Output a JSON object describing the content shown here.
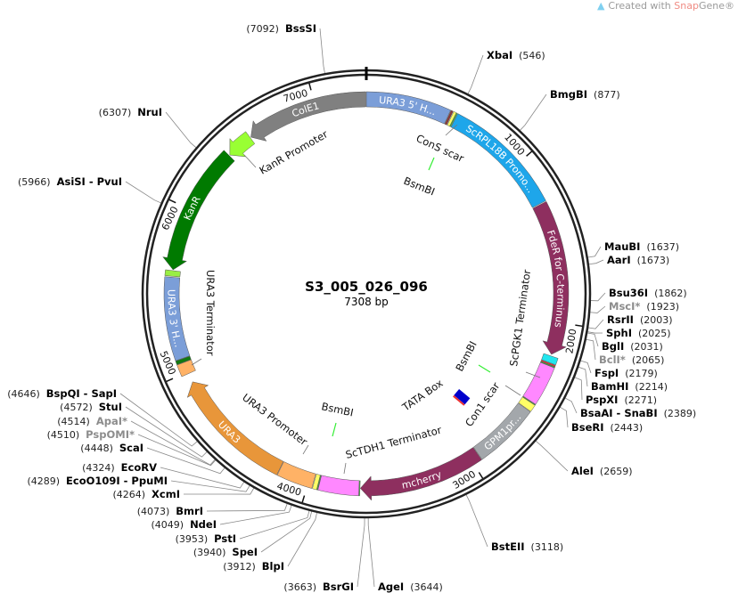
{
  "watermark": {
    "prefix": "Created with ",
    "brand_a": "Snap",
    "brand_b": "Gene®"
  },
  "plasmid": {
    "name": "S3_005_026_096",
    "length_label": "7308 bp",
    "length": 7308
  },
  "ticks": [
    1000,
    2000,
    3000,
    4000,
    5000,
    6000,
    7000
  ],
  "features": [
    {
      "label": "URA3 5' H...",
      "start": 0,
      "end": 500,
      "dir": 0,
      "color": "#7b9ed8"
    },
    {
      "label": "",
      "start": 503,
      "end": 516,
      "dir": 0,
      "color": "#8b3a3a"
    },
    {
      "label": "",
      "start": 520,
      "end": 536,
      "dir": 0,
      "color": "#ffff66"
    },
    {
      "label": "",
      "start": 537,
      "end": 543,
      "dir": 0,
      "color": "#33cc33"
    },
    {
      "label": "ScRPL18B Promo...",
      "start": 546,
      "end": 1270,
      "dir": 0,
      "color": "#1ea6ea"
    },
    {
      "label": "FdeR for C-terminus",
      "start": 1275,
      "end": 2195,
      "dir": 1,
      "color": "#8e2f5f"
    },
    {
      "label": "",
      "start": 2205,
      "end": 2245,
      "dir": 0,
      "color": "#22e6ee"
    },
    {
      "label": "",
      "start": 2248,
      "end": 2256,
      "dir": 0,
      "color": "#ee3333"
    },
    {
      "label": "",
      "start": 2257,
      "end": 2263,
      "dir": 0,
      "color": "#33bb33"
    },
    {
      "label": "",
      "start": 2264,
      "end": 2500,
      "dir": 0,
      "color": "#ff88ff"
    },
    {
      "label": "",
      "start": 2502,
      "end": 2506,
      "dir": 0,
      "color": "#33bb33"
    },
    {
      "label": "",
      "start": 2507,
      "end": 2550,
      "dir": 0,
      "color": "#ffff66"
    },
    {
      "label": "GPM1pr...",
      "start": 2553,
      "end": 2945,
      "dir": 0,
      "color": "#a3a7ab"
    },
    {
      "label": "mcherry",
      "start": 2948,
      "end": 3690,
      "dir": 1,
      "color": "#8e2f5f"
    },
    {
      "label": "",
      "start": 3692,
      "end": 3697,
      "dir": 0,
      "color": "#33ee33"
    },
    {
      "label": "",
      "start": 3698,
      "end": 3935,
      "dir": 0,
      "color": "#ff88ff"
    },
    {
      "label": "",
      "start": 3937,
      "end": 3942,
      "dir": 0,
      "color": "#33bb33"
    },
    {
      "label": "",
      "start": 3943,
      "end": 3968,
      "dir": 0,
      "color": "#ffff66"
    },
    {
      "label": "",
      "start": 3972,
      "end": 4185,
      "dir": 0,
      "color": "#ffb266"
    },
    {
      "label": "URA3",
      "start": 4188,
      "end": 4935,
      "dir": 1,
      "color": "#e8963a"
    },
    {
      "label": "",
      "start": 4990,
      "end": 5062,
      "dir": 0,
      "color": "#ffb266"
    },
    {
      "label": "",
      "start": 5064,
      "end": 5086,
      "dir": 0,
      "color": "#117a11"
    },
    {
      "label": "URA3 3' H...",
      "start": 5088,
      "end": 5580,
      "dir": 0,
      "color": "#7b9ed8"
    },
    {
      "label": "",
      "start": 5586,
      "end": 5620,
      "dir": 0,
      "color": "#99ee44"
    },
    {
      "label": "KanR",
      "start": 5625,
      "end": 6400,
      "dir": -1,
      "color": "#007a00"
    },
    {
      "label": "",
      "start": 6405,
      "end": 6565,
      "dir": -1,
      "color": "#99ff33"
    },
    {
      "label": "ColE1",
      "start": 6570,
      "end": 7305,
      "dir": -1,
      "color": "#808080"
    }
  ],
  "sites": [
    {
      "name": "BssSI",
      "pos": 7092,
      "dim": false
    },
    {
      "name": "XbaI",
      "pos": 546,
      "dim": false
    },
    {
      "name": "BmgBI",
      "pos": 877,
      "dim": false
    },
    {
      "name": "MauBI",
      "pos": 1637,
      "dim": false
    },
    {
      "name": "AarI",
      "pos": 1673,
      "dim": false
    },
    {
      "name": "Bsu36I",
      "pos": 1862,
      "dim": false
    },
    {
      "name": "MscI*",
      "pos": 1923,
      "dim": true
    },
    {
      "name": "RsrII",
      "pos": 2003,
      "dim": false
    },
    {
      "name": "SphI",
      "pos": 2025,
      "dim": false
    },
    {
      "name": "BglI",
      "pos": 2031,
      "dim": false
    },
    {
      "name": "BclI*",
      "pos": 2065,
      "dim": true
    },
    {
      "name": "FspI",
      "pos": 2179,
      "dim": false
    },
    {
      "name": "BamHI",
      "pos": 2214,
      "dim": false
    },
    {
      "name": "PspXI",
      "pos": 2271,
      "dim": false
    },
    {
      "name": "BsaAI - SnaBI",
      "pos": 2389,
      "dim": false
    },
    {
      "name": "BseRI",
      "pos": 2443,
      "dim": false
    },
    {
      "name": "AleI",
      "pos": 2659,
      "dim": false
    },
    {
      "name": "BstEII",
      "pos": 3118,
      "dim": false
    },
    {
      "name": "AgeI",
      "pos": 3644,
      "dim": false
    },
    {
      "name": "BsrGI",
      "pos": 3663,
      "dim": false
    },
    {
      "name": "BlpI",
      "pos": 3912,
      "dim": false
    },
    {
      "name": "SpeI",
      "pos": 3940,
      "dim": false
    },
    {
      "name": "PstI",
      "pos": 3953,
      "dim": false
    },
    {
      "name": "NdeI",
      "pos": 4049,
      "dim": false
    },
    {
      "name": "BmrI",
      "pos": 4073,
      "dim": false
    },
    {
      "name": "XcmI",
      "pos": 4264,
      "dim": false
    },
    {
      "name": "EcoO109I - PpuMI",
      "pos": 4289,
      "dim": false
    },
    {
      "name": "EcoRV",
      "pos": 4324,
      "dim": false
    },
    {
      "name": "ScaI",
      "pos": 4448,
      "dim": false
    },
    {
      "name": "PspOMI*",
      "pos": 4510,
      "dim": true
    },
    {
      "name": "ApaI*",
      "pos": 4514,
      "dim": true
    },
    {
      "name": "StuI",
      "pos": 4572,
      "dim": false
    },
    {
      "name": "BspQI - SapI",
      "pos": 4646,
      "dim": false
    },
    {
      "name": "AsiSI - PvuI",
      "pos": 5966,
      "dim": false
    },
    {
      "name": "NruI",
      "pos": 6307,
      "dim": false
    }
  ],
  "inner_labels": {
    "cons_scar": "ConS scar",
    "bsmbi_top": "BsmBI",
    "kanr_promoter": "KanR Promoter",
    "ura3_terminator": "URA3 Terminator",
    "scpgk1_terminator": "ScPGK1 Terminator",
    "tata_box": "TATA Box",
    "bsmbi_right": "BsmBI",
    "con1_scar": "Con1 scar",
    "sctdh1_terminator": "ScTDH1 Terminator",
    "bsmbi_bottom": "BsmBI",
    "ura3_promoter": "URA3 Promoter"
  },
  "colors": {
    "bsmbi": "#33ee33",
    "tata_box": "#0000cc"
  }
}
